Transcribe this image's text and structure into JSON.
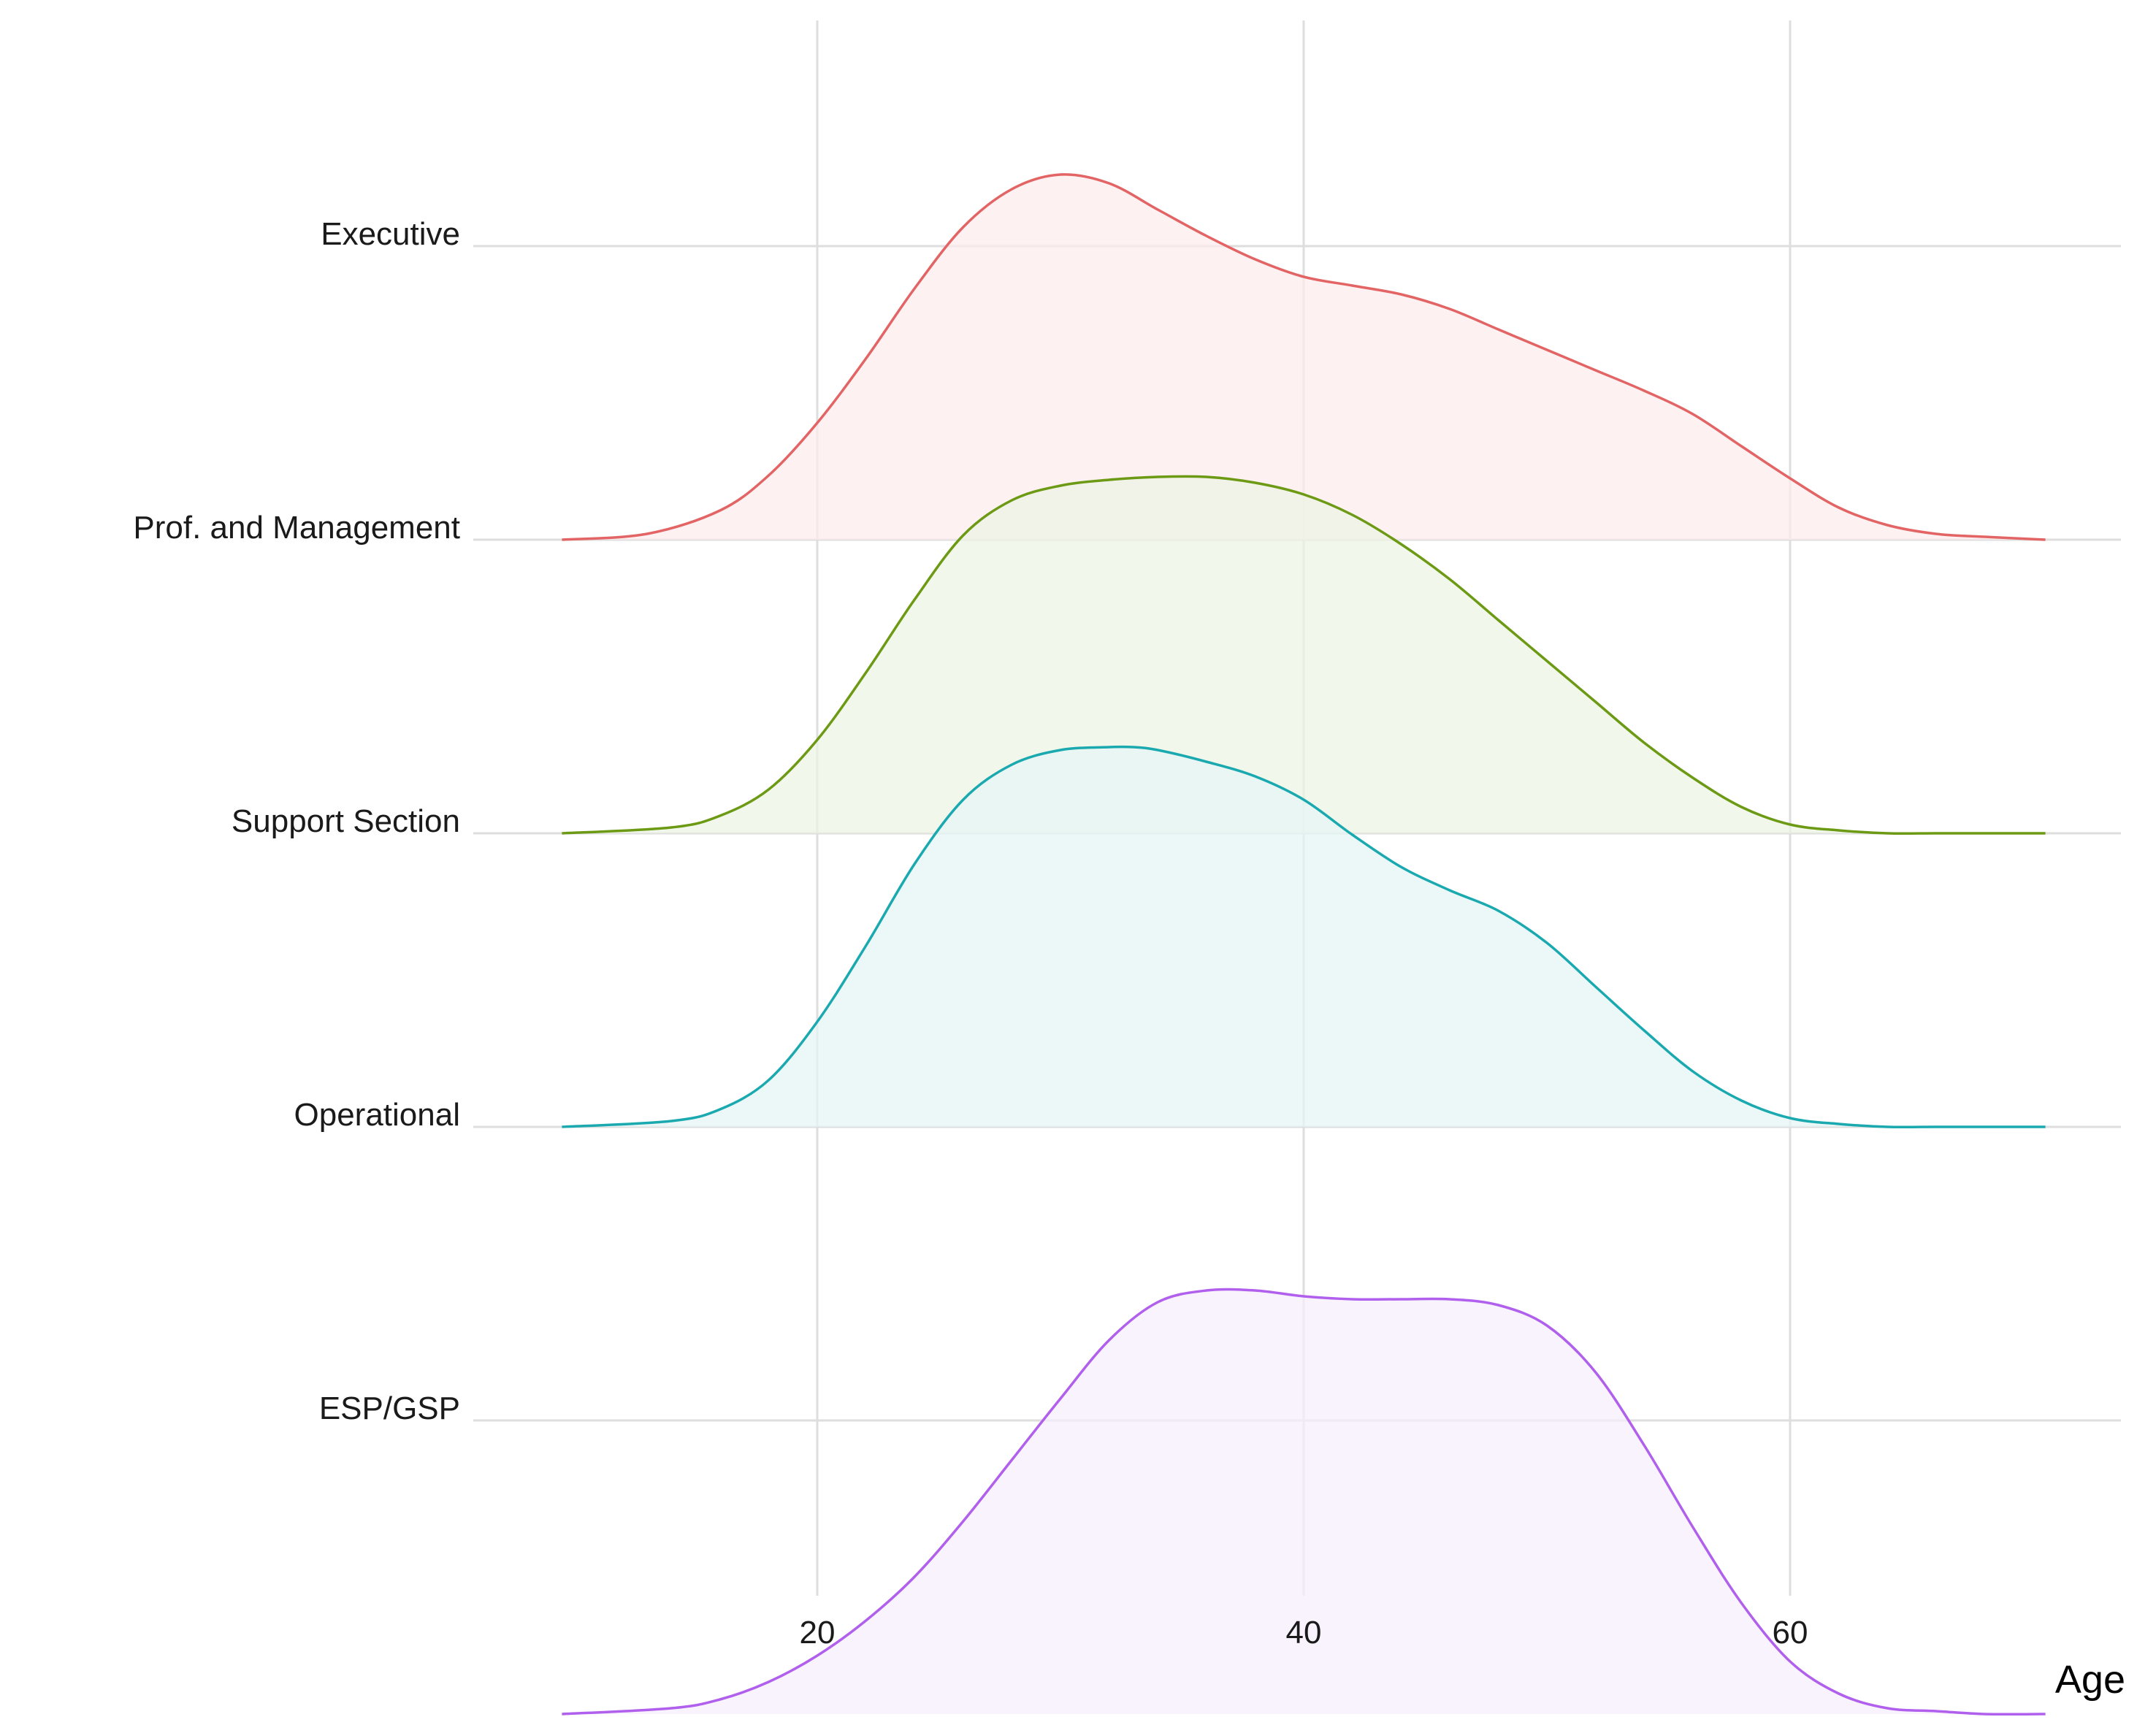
{
  "chart_data": {
    "type": "area",
    "subtype": "ridgeline-density",
    "xlabel": "Age",
    "xlim": [
      5,
      74
    ],
    "xticks": [
      20,
      40,
      60
    ],
    "x_range": [
      9.5,
      70.5
    ],
    "grid": true,
    "legend": "none",
    "series": [
      {
        "name": "Executive",
        "color": "#e36464",
        "fill": "#fdeced",
        "x": [
          9.5,
          13,
          16,
          18,
          20,
          22,
          24,
          26,
          28,
          30,
          32,
          34,
          36,
          38,
          40,
          42,
          44,
          46,
          48,
          50,
          52,
          54,
          56,
          58,
          60,
          62,
          64,
          66,
          68,
          70.5
        ],
        "height": [
          0.0,
          0.02,
          0.1,
          0.22,
          0.4,
          0.62,
          0.86,
          1.07,
          1.2,
          1.25,
          1.22,
          1.13,
          1.04,
          0.96,
          0.9,
          0.87,
          0.84,
          0.79,
          0.72,
          0.65,
          0.58,
          0.51,
          0.43,
          0.32,
          0.21,
          0.11,
          0.05,
          0.02,
          0.01,
          0.0
        ]
      },
      {
        "name": "Prof. and Management",
        "color": "#6c9a14",
        "fill": "#edf4e3",
        "x": [
          9.5,
          14,
          16,
          18,
          20,
          22,
          24,
          26,
          28,
          30,
          32,
          34,
          36,
          38,
          40,
          42,
          44,
          46,
          48,
          50,
          52,
          54,
          56,
          58,
          60,
          62,
          64,
          66,
          68,
          70.5
        ],
        "height": [
          0.0,
          0.02,
          0.06,
          0.15,
          0.32,
          0.55,
          0.8,
          1.02,
          1.14,
          1.19,
          1.21,
          1.22,
          1.22,
          1.2,
          1.16,
          1.09,
          0.99,
          0.87,
          0.73,
          0.59,
          0.45,
          0.31,
          0.19,
          0.09,
          0.03,
          0.01,
          0.0,
          0.0,
          0.0,
          0.0
        ]
      },
      {
        "name": "Support Section",
        "color": "#1ba9b0",
        "fill": "#e5f5f5",
        "x": [
          9.5,
          14,
          16,
          18,
          20,
          22,
          24,
          26,
          28,
          30,
          32,
          33,
          34,
          36,
          38,
          40,
          42,
          44,
          46,
          48,
          50,
          52,
          54,
          56,
          58,
          60,
          62,
          64,
          66,
          70.5
        ],
        "height": [
          0.0,
          0.02,
          0.06,
          0.16,
          0.36,
          0.62,
          0.9,
          1.12,
          1.24,
          1.29,
          1.3,
          1.3,
          1.29,
          1.25,
          1.2,
          1.12,
          1.0,
          0.89,
          0.81,
          0.74,
          0.63,
          0.48,
          0.33,
          0.19,
          0.09,
          0.03,
          0.01,
          0.0,
          0.0,
          0.0
        ]
      },
      {
        "name": "ESP/GSP",
        "color": "#b060ec",
        "fill": "#f5eefc",
        "x": [
          9.5,
          14,
          16,
          18,
          20,
          22,
          24,
          26,
          28,
          30,
          32,
          34,
          36,
          38,
          40,
          42,
          44,
          46,
          48,
          50,
          52,
          54,
          56,
          58,
          60,
          62,
          64,
          66,
          68,
          70.5
        ],
        "height": [
          0.0,
          0.02,
          0.05,
          0.11,
          0.2,
          0.32,
          0.47,
          0.66,
          0.87,
          1.08,
          1.28,
          1.41,
          1.45,
          1.45,
          1.43,
          1.42,
          1.42,
          1.42,
          1.4,
          1.33,
          1.17,
          0.92,
          0.64,
          0.38,
          0.18,
          0.07,
          0.02,
          0.01,
          0.0,
          0.0
        ]
      }
    ],
    "categories": [
      "Executive",
      "Prof. and Management",
      "Support Section",
      "Operational",
      "ESP/GSP"
    ]
  }
}
